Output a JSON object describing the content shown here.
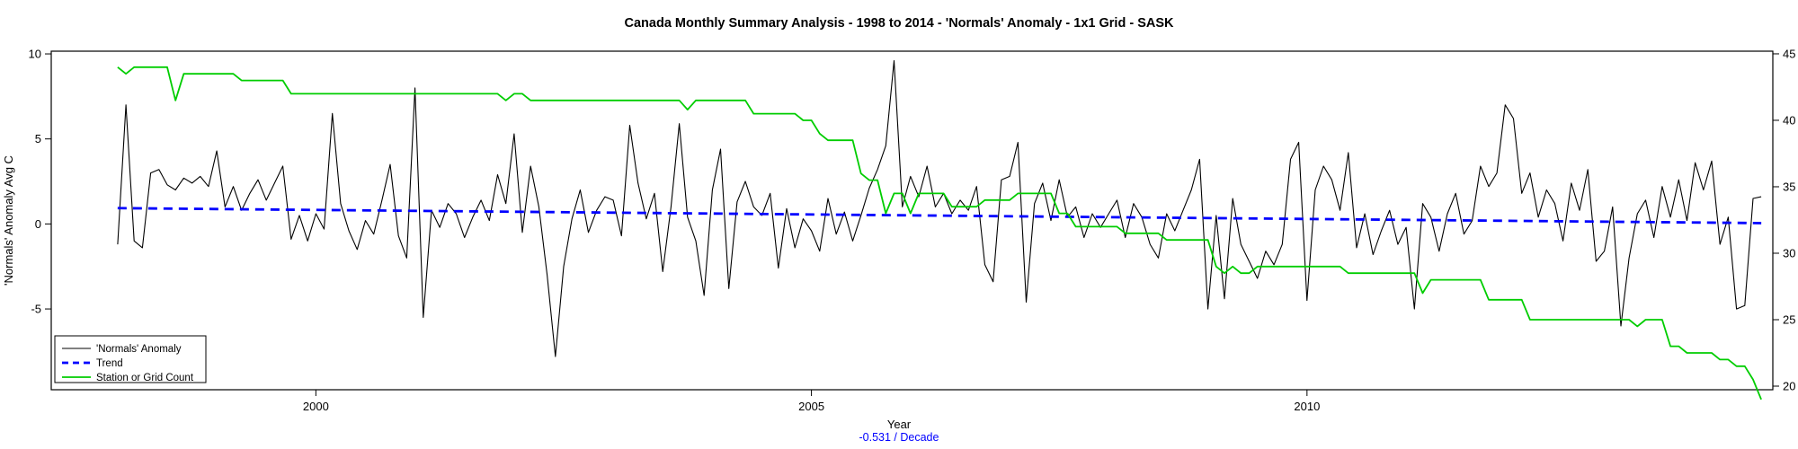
{
  "chart_data": {
    "type": "line",
    "title": "Canada Monthly Summary Analysis - 1998 to 2014 - 'Normals' Anomaly - 1x1 Grid - SASK",
    "start_year": 1998,
    "frequency": "monthly",
    "x_axis": {
      "label": "Year",
      "ticks": [
        2000,
        2005,
        2010
      ],
      "range": [
        1997.33,
        2014.7
      ]
    },
    "y_left": {
      "label": "'Normals' Anomaly Avg C",
      "ticks": [
        -5,
        0,
        5,
        10
      ],
      "range": [
        -9.75,
        10.16
      ]
    },
    "y_right": {
      "ticks": [
        20,
        25,
        30,
        35,
        40,
        45
      ],
      "range": [
        19.73,
        45.2
      ]
    },
    "footer": {
      "trend_label": "-0.531 / Decade"
    },
    "series": [
      {
        "id": "anomaly",
        "name": "'Normals' Anomaly",
        "color": "#000000",
        "style": "solid",
        "axis": "left",
        "values": [
          -1.2,
          7,
          -1,
          -1.4,
          3,
          3.2,
          2.3,
          2,
          2.7,
          2.4,
          2.8,
          2.2,
          4.3,
          1,
          2.2,
          0.8,
          1.8,
          2.6,
          1.4,
          2.4,
          3.4,
          -0.9,
          0.5,
          -1,
          0.6,
          -0.3,
          6.5,
          1.2,
          -0.4,
          -1.5,
          0.2,
          -0.6,
          1.4,
          3.5,
          -0.7,
          -2,
          8,
          -5.5,
          0.8,
          -0.2,
          1.2,
          0.6,
          -0.8,
          0.4,
          1.4,
          0.2,
          2.9,
          1.2,
          5.3,
          -0.5,
          3.4,
          1,
          -3,
          -7.8,
          -2.5,
          0.3,
          2,
          -0.5,
          0.8,
          1.6,
          1.4,
          -0.7,
          5.8,
          2.4,
          0.3,
          1.8,
          -2.8,
          1,
          5.9,
          0.4,
          -1,
          -4.2,
          2,
          4.4,
          -3.8,
          1.3,
          2.5,
          1,
          0.5,
          1.8,
          -2.6,
          0.9,
          -1.4,
          0.3,
          -0.4,
          -1.6,
          1.5,
          -0.6,
          0.7,
          -1,
          0.5,
          2.1,
          3.2,
          4.6,
          9.6,
          1,
          2.8,
          1.6,
          3.4,
          1,
          1.8,
          0.6,
          1.4,
          0.8,
          2.2,
          -2.4,
          -3.4,
          2.6,
          2.8,
          4.8,
          -4.6,
          1.2,
          2.4,
          0.2,
          2.6,
          0.4,
          1,
          -0.8,
          0.6,
          -0.2,
          0.6,
          1.4,
          -0.8,
          1.2,
          0.4,
          -1.2,
          -2,
          0.6,
          -0.4,
          0.8,
          2,
          3.8,
          -5,
          0.5,
          -4.4,
          1.5,
          -1.2,
          -2.2,
          -3.2,
          -1.6,
          -2.4,
          -1.2,
          3.8,
          4.8,
          -4.5,
          2,
          3.4,
          2.6,
          0.8,
          4.2,
          -1.4,
          0.6,
          -1.8,
          -0.4,
          0.8,
          -1.2,
          -0.2,
          -5,
          1.2,
          0.4,
          -1.6,
          0.6,
          1.8,
          -0.6,
          0.2,
          3.4,
          2.2,
          3,
          7,
          6.2,
          1.8,
          3,
          0.4,
          2,
          1.2,
          -1,
          2.4,
          0.8,
          3.2,
          -2.2,
          -1.6,
          1,
          -6,
          -2,
          0.6,
          1.4,
          -0.8,
          2.2,
          0.4,
          2.6,
          0.2,
          3.6,
          2,
          3.7,
          -1.2,
          0.4,
          -5,
          -4.8,
          1.5,
          1.6
        ]
      },
      {
        "id": "trend",
        "name": "Trend",
        "color": "#0000FF",
        "style": "dashed",
        "axis": "left",
        "trend": {
          "slope_per_decade": -0.531,
          "value_at_start": 0.93
        }
      },
      {
        "id": "station-count",
        "name": "Station or Grid Count",
        "color": "#00CD00",
        "style": "solid",
        "axis": "right",
        "values": [
          44,
          43.5,
          44,
          44,
          44,
          44,
          44,
          41.5,
          43.5,
          43.5,
          43.5,
          43.5,
          43.5,
          43.5,
          43.5,
          43,
          43,
          43,
          43,
          43,
          43,
          42,
          42,
          42,
          42,
          42,
          42,
          42,
          42,
          42,
          42,
          42,
          42,
          42,
          42,
          42,
          42,
          42,
          42,
          42,
          42,
          42,
          42,
          42,
          42,
          42,
          42,
          41.5,
          42,
          42,
          41.5,
          41.5,
          41.5,
          41.5,
          41.5,
          41.5,
          41.5,
          41.5,
          41.5,
          41.5,
          41.5,
          41.5,
          41.5,
          41.5,
          41.5,
          41.5,
          41.5,
          41.5,
          41.5,
          40.8,
          41.5,
          41.5,
          41.5,
          41.5,
          41.5,
          41.5,
          41.5,
          40.5,
          40.5,
          40.5,
          40.5,
          40.5,
          40.5,
          40,
          40,
          39,
          38.5,
          38.5,
          38.5,
          38.5,
          36,
          35.5,
          35.5,
          33,
          34.5,
          34.5,
          33,
          34.5,
          34.5,
          34.5,
          34.5,
          33.5,
          33.5,
          33.5,
          33.5,
          34,
          34,
          34,
          34,
          34.5,
          34.5,
          34.5,
          34.5,
          34.5,
          33,
          33,
          32,
          32,
          32,
          32,
          32,
          32,
          31.5,
          31.5,
          31.5,
          31.5,
          31.5,
          31,
          31,
          31,
          31,
          31,
          31,
          29,
          28.5,
          29,
          28.5,
          28.5,
          29,
          29,
          29,
          29,
          29,
          29,
          29,
          29,
          29,
          29,
          29,
          28.5,
          28.5,
          28.5,
          28.5,
          28.5,
          28.5,
          28.5,
          28.5,
          28.5,
          27,
          28,
          28,
          28,
          28,
          28,
          28,
          28,
          26.5,
          26.5,
          26.5,
          26.5,
          26.5,
          25,
          25,
          25,
          25,
          25,
          25,
          25,
          25,
          25,
          25,
          25,
          25,
          25,
          24.5,
          25,
          25,
          25,
          23,
          23,
          22.5,
          22.5,
          22.5,
          22.5,
          22,
          22,
          21.5,
          21.5,
          20.5,
          19
        ]
      }
    ],
    "legend": [
      "'Normals' Anomaly",
      "Trend",
      "Station or Grid Count"
    ]
  }
}
